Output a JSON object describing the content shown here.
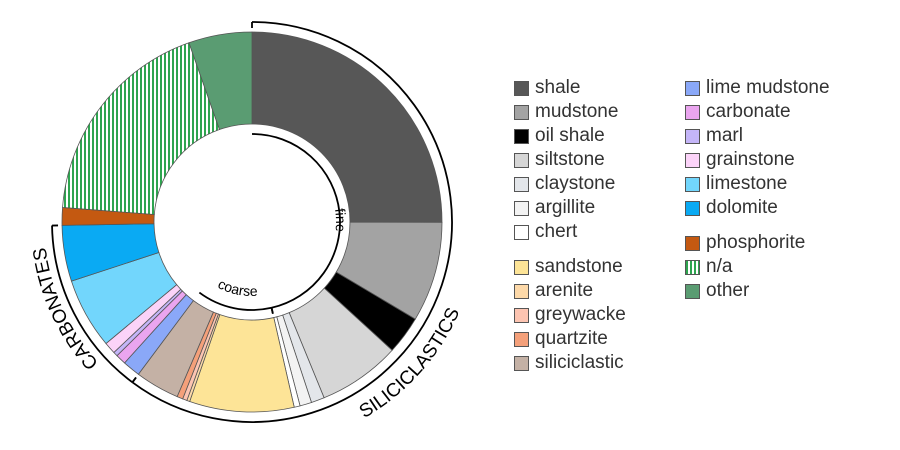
{
  "chart_data": {
    "type": "pie",
    "title": "",
    "categories": [
      "shale",
      "mudstone",
      "oil shale",
      "siltstone",
      "claystone",
      "argillite",
      "chert",
      "sandstone",
      "arenite",
      "greywacke",
      "quartzite",
      "siliciclastic",
      "lime mudstone",
      "carbonate",
      "marl",
      "grainstone",
      "limestone",
      "dolomite",
      "phosphorite",
      "n/a",
      "other"
    ],
    "values": [
      20.0,
      6.8,
      2.6,
      5.6,
      0.9,
      0.8,
      0.4,
      7.1,
      0.2,
      0.3,
      0.4,
      3.0,
      1.2,
      0.7,
      0.3,
      0.8,
      4.8,
      3.8,
      1.2,
      14.7,
      4.3
    ],
    "colors": [
      "#575757",
      "#a3a3a3",
      "#000000",
      "#d6d6d6",
      "#e3e6ea",
      "#f3f3f3",
      "#ffffff",
      "#fde497",
      "#fdd9a9",
      "#fcc4b1",
      "#f4a07a",
      "#c4b1a5",
      "#8aa8f8",
      "#eaa5ef",
      "#c4b5f8",
      "#fbd3f8",
      "#72d6fc",
      "#0aaaf3",
      "#c45911",
      "#2ea44f",
      "#5a9c72"
    ],
    "patterns": {
      "n/a": "vertical-stripes"
    },
    "inner_labels": {
      "fine": "fine",
      "coarse": "coarse"
    },
    "group_labels": {
      "siliciclastics": "SILICICLASTICS",
      "carbonates": "CARBONATES"
    }
  },
  "legend": {
    "col1_group1": [
      "shale",
      "mudstone",
      "oil shale",
      "siltstone",
      "claystone",
      "argillite",
      "chert"
    ],
    "col1_group2": [
      "sandstone",
      "arenite",
      "greywacke",
      "quartzite",
      "siliciclastic"
    ],
    "col2_group1": [
      "lime mudstone",
      "carbonate",
      "marl",
      "grainstone",
      "limestone",
      "dolomite"
    ],
    "col2_group2": [
      "phosphorite",
      "n/a",
      "other"
    ]
  }
}
